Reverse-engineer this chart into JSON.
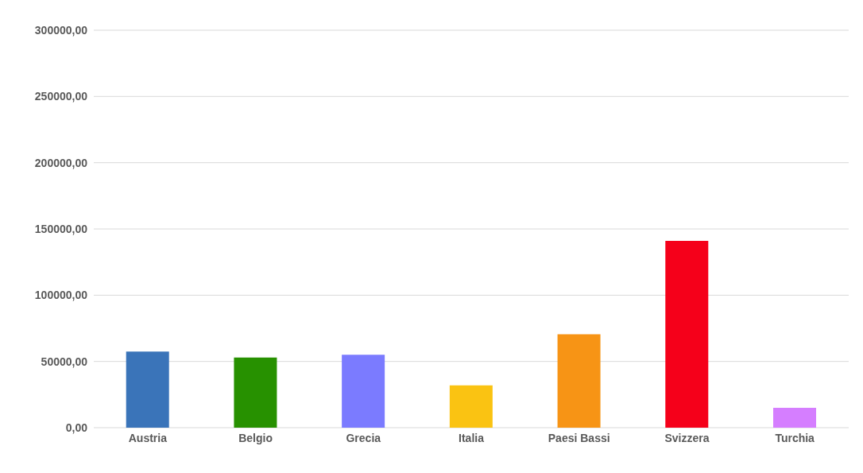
{
  "chart_data": {
    "type": "bar",
    "categories": [
      "Austria",
      "Belgio",
      "Grecia",
      "Italia",
      "Paesi Bassi",
      "Svizzera",
      "Turchia"
    ],
    "values": [
      57500,
      53000,
      55000,
      32000,
      70500,
      141000,
      15000
    ],
    "colors": [
      "#3a74b9",
      "#279100",
      "#7b7bff",
      "#fac312",
      "#f79415",
      "#f5001a",
      "#d57eff"
    ],
    "ylim": [
      0,
      300000
    ],
    "yticks": [
      {
        "value": 0,
        "label": "0,00"
      },
      {
        "value": 50000,
        "label": "50000,00"
      },
      {
        "value": 100000,
        "label": "100000,00"
      },
      {
        "value": 150000,
        "label": "150000,00"
      },
      {
        "value": 200000,
        "label": "200000,00"
      },
      {
        "value": 250000,
        "label": "250000,00"
      },
      {
        "value": 300000,
        "label": "300000,00"
      }
    ],
    "grid": "y"
  }
}
